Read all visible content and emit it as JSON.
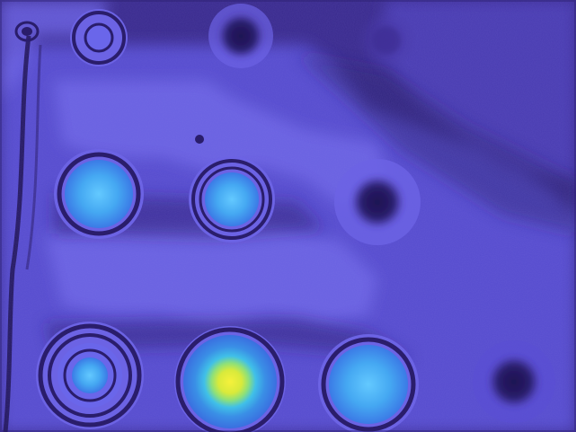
{
  "image": {
    "description_kind": "false-color intensity map",
    "colors": {
      "background": "#3a2b8e",
      "field_light": "#6c63e4",
      "field_mid": "#5a4fd3",
      "dark": "#2a1d6b",
      "very_dark": "#1d1250",
      "cyan": "#3fb6f2",
      "cyan_light": "#63c9ff",
      "yellow": "#f6f13b",
      "green": "#9be06b"
    },
    "spots": [
      {
        "name": "top-left-ring",
        "style": "ring"
      },
      {
        "name": "top-center-dark",
        "style": "dark"
      },
      {
        "name": "top-right-faint",
        "style": "faint"
      },
      {
        "name": "mid-left-bright",
        "style": "cyan"
      },
      {
        "name": "mid-center-bright",
        "style": "cyan"
      },
      {
        "name": "mid-right-dark",
        "style": "dark"
      },
      {
        "name": "bottom-left-rings",
        "style": "rings"
      },
      {
        "name": "bottom-center-hot",
        "style": "hot"
      },
      {
        "name": "bottom-right-cyan",
        "style": "cyan"
      },
      {
        "name": "bottom-far-right-dark",
        "style": "dark"
      }
    ]
  }
}
